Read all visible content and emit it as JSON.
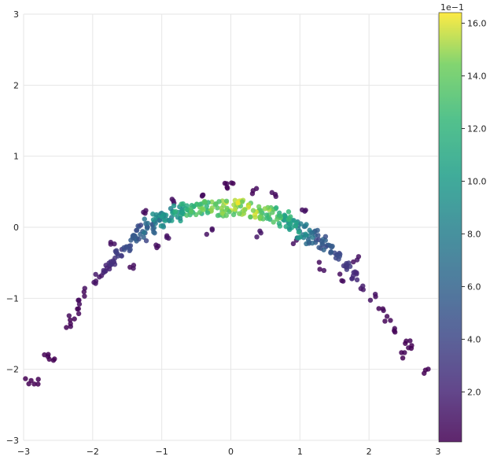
{
  "chart_data": {
    "type": "scatter",
    "title": "",
    "xlabel": "",
    "ylabel": "",
    "xlim": [
      -3,
      3
    ],
    "ylim": [
      -3,
      3
    ],
    "xticks": [
      -3,
      -2,
      -1,
      0,
      1,
      2,
      3
    ],
    "yticks": [
      -3,
      -2,
      -1,
      0,
      1,
      2,
      3
    ],
    "grid": true,
    "colorbar": {
      "range": [
        0.1,
        16.4
      ],
      "ticks": [
        2.0,
        4.0,
        6.0,
        8.0,
        10.0,
        12.0,
        14.0,
        16.0
      ],
      "tick_labels": [
        "2.0",
        "4.0",
        "6.0",
        "8.0",
        "10.0",
        "12.0",
        "14.0",
        "16.0"
      ],
      "offset_text": "1e−1",
      "colormap": "viridis"
    },
    "series": [
      {
        "values": [
          {
            "x": -2.94,
            "y": -2.18,
            "c": 0.3
          },
          {
            "x": -2.82,
            "y": -2.17,
            "c": 0.3
          },
          {
            "x": -2.68,
            "y": -1.78,
            "c": 0.4
          },
          {
            "x": -2.6,
            "y": -1.85,
            "c": 0.4
          },
          {
            "x": -2.35,
            "y": -1.42,
            "c": 0.6
          },
          {
            "x": -2.3,
            "y": -1.3,
            "c": 0.6
          },
          {
            "x": -2.22,
            "y": -1.17,
            "c": 0.7
          },
          {
            "x": -2.18,
            "y": -1.05,
            "c": 0.8
          },
          {
            "x": -2.1,
            "y": -0.92,
            "c": 1.0
          },
          {
            "x": -2.0,
            "y": -0.78,
            "c": 1.3
          },
          {
            "x": -1.92,
            "y": -0.7,
            "c": 1.6
          },
          {
            "x": -1.8,
            "y": -0.58,
            "c": 2.2
          },
          {
            "x": -1.72,
            "y": -0.47,
            "c": 2.8
          },
          {
            "x": -1.62,
            "y": -0.37,
            "c": 3.6
          },
          {
            "x": -1.5,
            "y": -0.27,
            "c": 4.6
          },
          {
            "x": -1.4,
            "y": -0.16,
            "c": 5.6
          },
          {
            "x": -1.3,
            "y": -0.08,
            "c": 6.8
          },
          {
            "x": -1.18,
            "y": 0.02,
            "c": 8.0
          },
          {
            "x": -1.05,
            "y": 0.1,
            "c": 9.4
          },
          {
            "x": -0.92,
            "y": 0.16,
            "c": 10.8
          },
          {
            "x": -0.78,
            "y": 0.19,
            "c": 12.0
          },
          {
            "x": -0.64,
            "y": 0.23,
            "c": 13.2
          },
          {
            "x": -0.5,
            "y": 0.24,
            "c": 14.2
          },
          {
            "x": -0.34,
            "y": 0.26,
            "c": 15.0
          },
          {
            "x": -0.18,
            "y": 0.27,
            "c": 15.6
          },
          {
            "x": 0.0,
            "y": 0.27,
            "c": 16.2
          },
          {
            "x": 0.18,
            "y": 0.27,
            "c": 16.4
          },
          {
            "x": 0.34,
            "y": 0.25,
            "c": 16.0
          },
          {
            "x": 0.5,
            "y": 0.22,
            "c": 15.2
          },
          {
            "x": 0.64,
            "y": 0.17,
            "c": 14.0
          },
          {
            "x": 0.78,
            "y": 0.12,
            "c": 12.6
          },
          {
            "x": 0.92,
            "y": 0.04,
            "c": 11.0
          },
          {
            "x": 1.05,
            "y": -0.04,
            "c": 9.6
          },
          {
            "x": 1.18,
            "y": -0.12,
            "c": 8.2
          },
          {
            "x": 1.3,
            "y": -0.22,
            "c": 6.8
          },
          {
            "x": 1.42,
            "y": -0.3,
            "c": 5.6
          },
          {
            "x": 1.55,
            "y": -0.42,
            "c": 4.4
          },
          {
            "x": 1.68,
            "y": -0.55,
            "c": 3.4
          },
          {
            "x": 1.8,
            "y": -0.68,
            "c": 2.4
          },
          {
            "x": 1.92,
            "y": -0.82,
            "c": 1.6
          },
          {
            "x": 2.05,
            "y": -0.98,
            "c": 1.1
          },
          {
            "x": 2.18,
            "y": -1.15,
            "c": 0.8
          },
          {
            "x": 2.28,
            "y": -1.3,
            "c": 0.6
          },
          {
            "x": 2.36,
            "y": -1.45,
            "c": 0.5
          },
          {
            "x": 2.48,
            "y": -1.79,
            "c": 0.4
          },
          {
            "x": 2.55,
            "y": -1.59,
            "c": 0.4
          },
          {
            "x": 2.62,
            "y": -1.67,
            "c": 0.4
          },
          {
            "x": 2.82,
            "y": -2.04,
            "c": 0.3
          },
          {
            "x": -0.4,
            "y": 0.5,
            "c": 0.8
          },
          {
            "x": -0.1,
            "y": 0.6,
            "c": 0.5
          },
          {
            "x": 0.0,
            "y": 0.58,
            "c": 0.6
          },
          {
            "x": 0.35,
            "y": 0.52,
            "c": 0.8
          },
          {
            "x": 0.62,
            "y": 0.46,
            "c": 1.0
          },
          {
            "x": -0.85,
            "y": 0.4,
            "c": 1.0
          },
          {
            "x": -1.25,
            "y": 0.22,
            "c": 1.0
          },
          {
            "x": 1.05,
            "y": 0.2,
            "c": 1.2
          },
          {
            "x": -0.3,
            "y": -0.05,
            "c": 1.4
          },
          {
            "x": 0.4,
            "y": -0.08,
            "c": 1.3
          },
          {
            "x": -0.9,
            "y": -0.1,
            "c": 1.2
          },
          {
            "x": 0.95,
            "y": -0.2,
            "c": 1.2
          },
          {
            "x": -1.45,
            "y": -0.55,
            "c": 1.0
          },
          {
            "x": 1.3,
            "y": -0.55,
            "c": 1.0
          },
          {
            "x": -1.1,
            "y": -0.3,
            "c": 1.0
          },
          {
            "x": 1.6,
            "y": -0.7,
            "c": 1.0
          },
          {
            "x": -1.7,
            "y": -0.25,
            "c": 1.2
          },
          {
            "x": 1.8,
            "y": -0.45,
            "c": 1.2
          }
        ]
      }
    ]
  }
}
